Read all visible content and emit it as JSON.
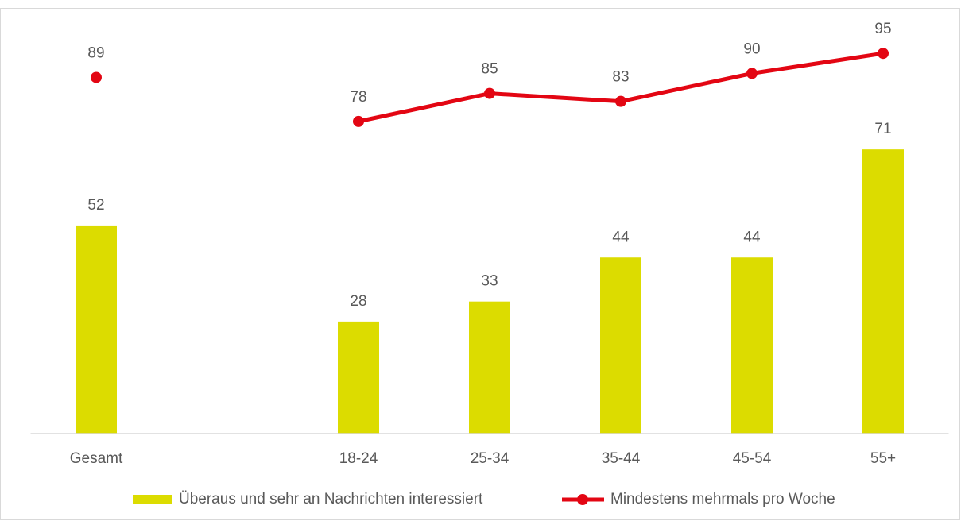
{
  "chart_data": {
    "type": "bar",
    "categories": [
      "Gesamt",
      null,
      "18-24",
      "25-34",
      "35-44",
      "45-54",
      "55+"
    ],
    "ylim": [
      0,
      100
    ],
    "series": [
      {
        "name": "Überaus und sehr an Nachrichten interessiert",
        "type": "bar",
        "color": "#dcdc00",
        "values": [
          52,
          null,
          28,
          33,
          44,
          44,
          71
        ]
      },
      {
        "name": "Mindestens mehrmals pro Woche",
        "type": "line",
        "color": "#e30613",
        "values": [
          89,
          null,
          78,
          85,
          83,
          90,
          95
        ]
      }
    ],
    "legend": "bottom"
  }
}
